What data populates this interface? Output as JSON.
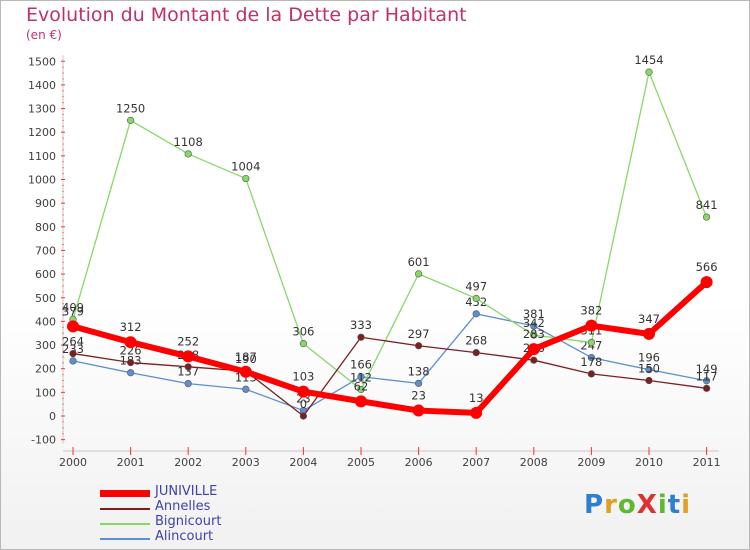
{
  "header": {
    "title": "Evolution du Montant de la Dette par Habitant",
    "unit": "(en €)"
  },
  "logo": {
    "text": "ProXiti",
    "letters": [
      "P",
      "r",
      "o",
      "X",
      "i",
      "t",
      "i"
    ],
    "colors": [
      "#2f7fd0",
      "#e0a020",
      "#5fb830",
      "#e03030",
      "#5fb830",
      "#2f7fd0",
      "#e0a020"
    ]
  },
  "chart_data": {
    "type": "line",
    "title": "Evolution du Montant de la Dette par Habitant",
    "ylabel": "(en €)",
    "xlabel": "",
    "x": [
      "2000",
      "2001",
      "2002",
      "2003",
      "2004",
      "2005",
      "2006",
      "2007",
      "2008",
      "2009",
      "2010",
      "2011"
    ],
    "ylim": [
      -100,
      1500
    ],
    "yticks": [
      -100,
      0,
      100,
      200,
      300,
      400,
      500,
      600,
      700,
      800,
      900,
      1000,
      1100,
      1200,
      1300,
      1400,
      1500
    ],
    "grid": false,
    "legend": "bottom-left",
    "series": [
      {
        "name": "Alincourt",
        "color": "#5b8fd0",
        "values": [
          233,
          183,
          137,
          113,
          23,
          166,
          138,
          432,
          381,
          247,
          196,
          149
        ]
      },
      {
        "name": "Bignicourt",
        "color": "#88d868",
        "values": [
          409,
          1250,
          1108,
          1004,
          306,
          112,
          601,
          497,
          342,
          311,
          1454,
          841
        ]
      },
      {
        "name": "Annelles",
        "color": "#7a2020",
        "values": [
          264,
          226,
          208,
          190,
          0,
          333,
          297,
          268,
          236,
          178,
          150,
          117
        ]
      },
      {
        "name": "JUNIVILLE",
        "color": "#ff0000",
        "values": [
          379,
          312,
          252,
          187,
          103,
          62,
          23,
          13,
          283,
          382,
          347,
          566
        ]
      }
    ]
  }
}
